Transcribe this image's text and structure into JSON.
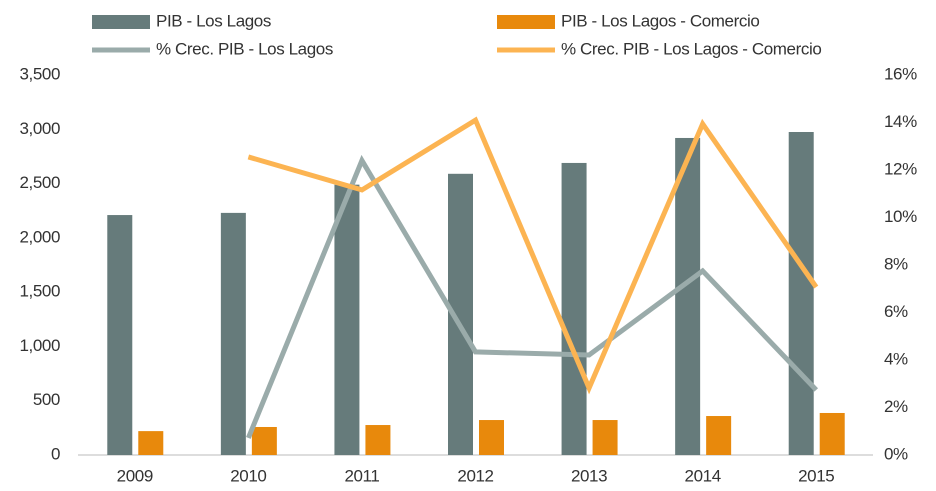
{
  "chart_data": {
    "type": "bar_line",
    "categories": [
      "2009",
      "2010",
      "2011",
      "2012",
      "2013",
      "2014",
      "2015"
    ],
    "series": [
      {
        "name": "PIB - Los Lagos",
        "type": "bar",
        "color": "#667b7b",
        "values": [
          2210,
          2230,
          2490,
          2590,
          2690,
          2920,
          2975
        ]
      },
      {
        "name": "PIB - Los Lagos - Comercio",
        "type": "bar",
        "color": "#e8890c",
        "values": [
          220,
          258,
          276,
          322,
          322,
          359,
          387
        ]
      },
      {
        "name": "% Crec. PIB - Los Lagos",
        "type": "line",
        "axis": "y2",
        "color": "#9aabaa",
        "values": [
          null,
          0.72,
          12.4,
          4.34,
          4.21,
          7.75,
          2.74
        ]
      },
      {
        "name": "% Crec. PIB - Los Lagos - Comercio",
        "type": "line",
        "axis": "y2",
        "color": "#fcb452",
        "values": [
          null,
          12.55,
          11.16,
          14.1,
          2.82,
          13.94,
          7.07
        ]
      }
    ],
    "ylim": [
      0,
      3500
    ],
    "yticks": [
      0,
      500,
      {
        "value": 1000,
        "label": "1,000"
      },
      {
        "value": 1500,
        "label": "1,500"
      },
      {
        "value": 2000,
        "label": "2,000"
      },
      {
        "value": 2500,
        "label": "2,500"
      },
      {
        "value": 3000,
        "label": "3,000"
      },
      {
        "value": 3500,
        "label": "3,500"
      }
    ],
    "y2lim": [
      0,
      16
    ],
    "y2ticks": [
      {
        "value": 0,
        "label": "0%"
      },
      {
        "value": 2,
        "label": "2%"
      },
      {
        "value": 4,
        "label": "4%"
      },
      {
        "value": 6,
        "label": "6%"
      },
      {
        "value": 8,
        "label": "8%"
      },
      {
        "value": 10,
        "label": "10%"
      },
      {
        "value": 12,
        "label": "12%"
      },
      {
        "value": 14,
        "label": "14%"
      },
      {
        "value": 16,
        "label": "16%"
      }
    ],
    "grid": false,
    "legend": "top"
  }
}
